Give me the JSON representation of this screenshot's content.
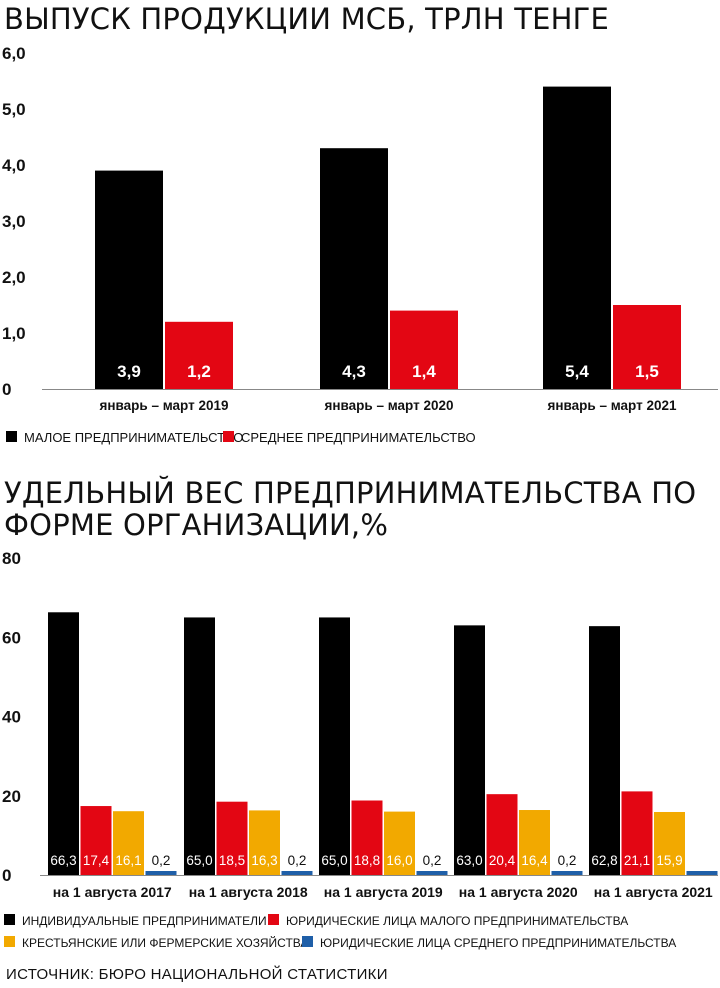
{
  "chart_data": [
    {
      "type": "bar",
      "title": "ВЫПУСК ПРОДУКЦИИ МСБ, ТРЛН ТЕНГЕ",
      "categories": [
        "январь – март 2019",
        "январь – март 2020",
        "январь – март 2021"
      ],
      "series": [
        {
          "name": "МАЛОЕ ПРЕДПРИНИМАТЕЛЬСТВО",
          "color": "#000000",
          "values": [
            3.9,
            4.3,
            5.4
          ],
          "labels": [
            "3,9",
            "4,3",
            "5,4"
          ]
        },
        {
          "name": "СРЕДНЕЕ ПРЕДПРИНИМАТЕЛЬСТВО",
          "color": "#e30613",
          "values": [
            1.2,
            1.4,
            1.5
          ],
          "labels": [
            "1,2",
            "1,4",
            "1,5"
          ]
        }
      ],
      "ylim": [
        0,
        6
      ],
      "yticks": [
        0,
        1,
        2,
        3,
        4,
        5,
        6
      ],
      "ytick_labels": [
        "0",
        "1,0",
        "2,0",
        "3,0",
        "4,0",
        "5,0",
        "6,0"
      ],
      "grid": false,
      "legend": "bottom-left"
    },
    {
      "type": "bar",
      "title": "УДЕЛЬНЫЙ ВЕС ПРЕДПРИНИМАТЕЛЬСТВА ПО ФОРМЕ ОРГАНИЗАЦИИ,%",
      "categories": [
        "на 1 августа 2017",
        "на 1 августа 2018",
        "на 1 августа 2019",
        "на 1 августа 2020",
        "на 1 августа 2021"
      ],
      "series": [
        {
          "name": "ИНДИВИДУАЛЬНЫЕ ПРЕДПРИНИМАТЕЛИ",
          "color": "#000000",
          "values": [
            66.3,
            65.0,
            65.0,
            63.0,
            62.8
          ],
          "labels": [
            "66,3",
            "65,0",
            "65,0",
            "63,0",
            "62,8"
          ]
        },
        {
          "name": "ЮРИДИЧЕСКИЕ ЛИЦА МАЛОГО ПРЕДПРИНИМАТЕЛЬСТВА",
          "color": "#e30613",
          "values": [
            17.4,
            18.5,
            18.8,
            20.4,
            21.1
          ],
          "labels": [
            "17,4",
            "18,5",
            "18,8",
            "20,4",
            "21,1"
          ]
        },
        {
          "name": "КРЕСТЬЯНСКИЕ ИЛИ ФЕРМЕРСКИЕ ХОЗЯЙСТВА",
          "color": "#f2a900",
          "values": [
            16.1,
            16.3,
            16.0,
            16.4,
            15.9
          ],
          "labels": [
            "16,1",
            "16,3",
            "16,0",
            "16,4",
            "15,9"
          ]
        },
        {
          "name": "ЮРИДИЧЕСКИЕ ЛИЦА СРЕДНЕГО ПРЕДПРИНИМАТЕЛЬСТВА",
          "color": "#1f5fa8",
          "values": [
            0.2,
            0.2,
            0.2,
            0.2,
            0.2
          ],
          "labels": [
            "0,2",
            "0,2",
            "0,2",
            "0,2",
            ""
          ]
        }
      ],
      "ylim": [
        0,
        80
      ],
      "yticks": [
        0,
        20,
        40,
        60,
        80
      ],
      "ytick_labels": [
        "0",
        "20",
        "40",
        "60",
        "80"
      ],
      "grid": false,
      "legend": "bottom-left"
    }
  ],
  "source": "ИСТОЧНИК: БЮРО НАЦИОНАЛЬНОЙ СТАТИСТИКИ"
}
